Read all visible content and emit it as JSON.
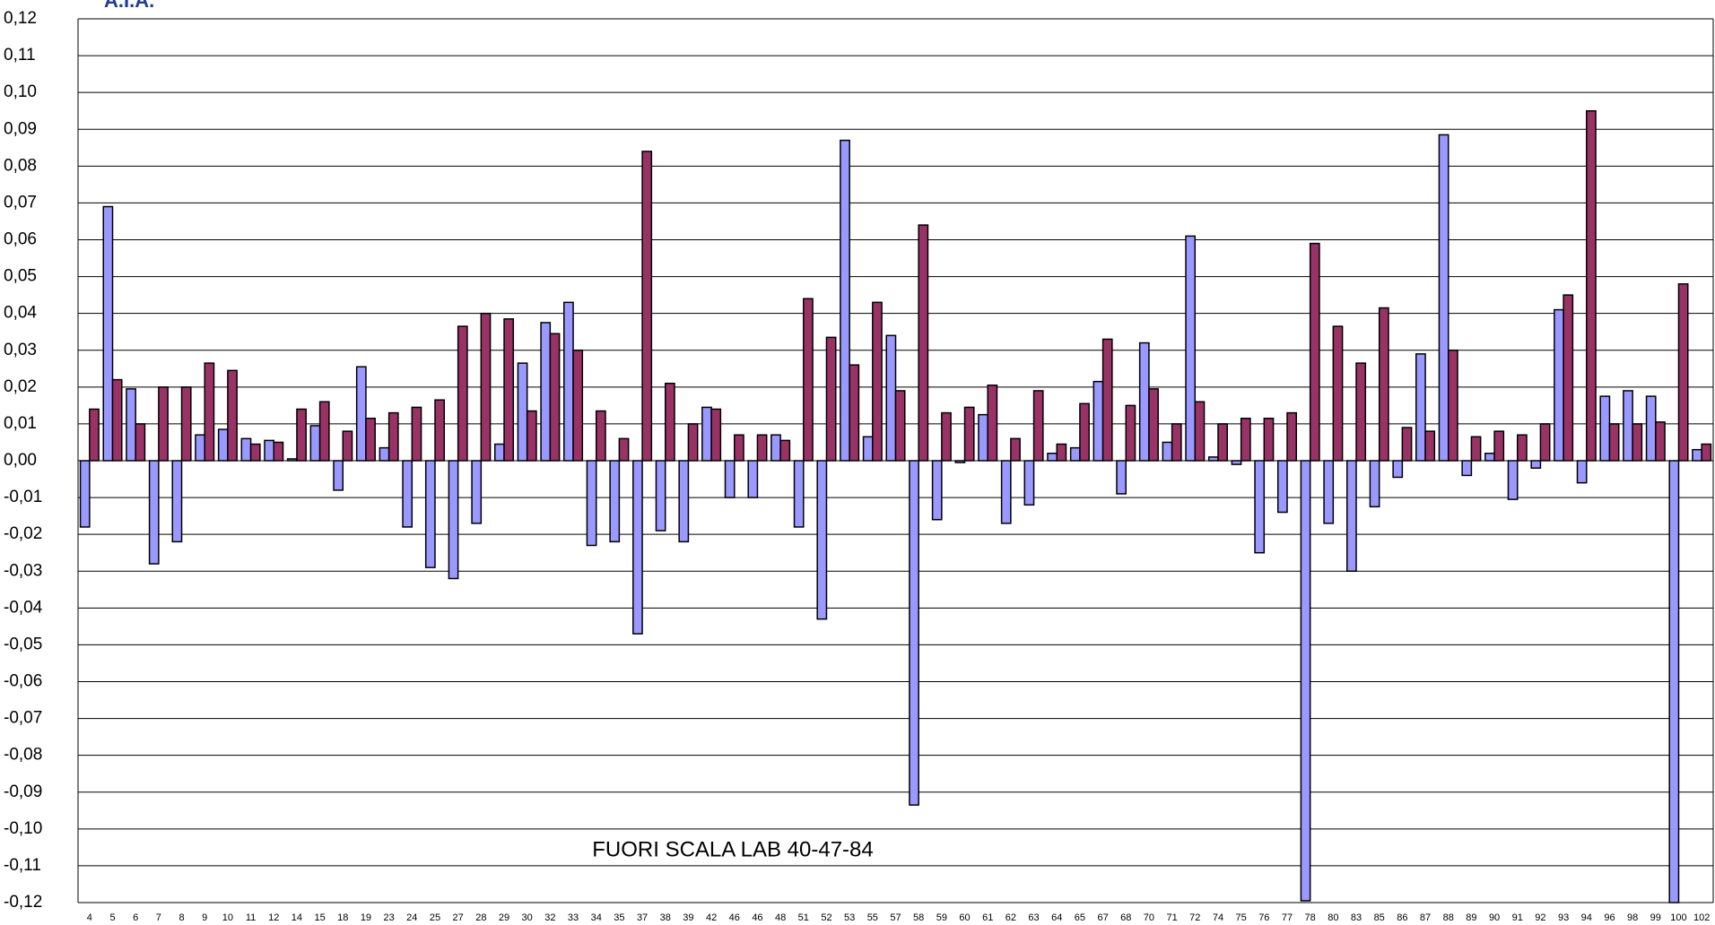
{
  "logo": "A.I.A.",
  "chart_data": {
    "type": "bar",
    "annotation": "FUORI SCALA LAB 40-47-84",
    "categories": [
      "4",
      "5",
      "6",
      "7",
      "8",
      "9",
      "10",
      "11",
      "12",
      "14",
      "15",
      "18",
      "19",
      "23",
      "24",
      "25",
      "27",
      "28",
      "29",
      "30",
      "32",
      "33",
      "34",
      "35",
      "37",
      "38",
      "39",
      "42",
      "46",
      "46",
      "48",
      "51",
      "52",
      "53",
      "55",
      "57",
      "58",
      "59",
      "60",
      "61",
      "62",
      "63",
      "64",
      "65",
      "67",
      "68",
      "70",
      "71",
      "72",
      "74",
      "75",
      "76",
      "77",
      "78",
      "80",
      "83",
      "85",
      "86",
      "87",
      "88",
      "89",
      "90",
      "91",
      "92",
      "93",
      "94",
      "96",
      "98",
      "99",
      "100",
      "102"
    ],
    "series": [
      {
        "color": "#9999ff",
        "values": [
          -0.018,
          0.069,
          0.0195,
          -0.028,
          -0.022,
          0.007,
          0.0085,
          0.006,
          0.0055,
          0.0005,
          0.0095,
          -0.008,
          0.0255,
          0.0035,
          -0.018,
          -0.029,
          -0.032,
          -0.017,
          0.0045,
          0.0265,
          0.0375,
          0.043,
          -0.023,
          -0.022,
          -0.047,
          -0.019,
          -0.022,
          0.0145,
          -0.01,
          -0.01,
          0.007,
          -0.018,
          -0.043,
          0.087,
          0.0065,
          0.034,
          -0.0935,
          -0.016,
          -0.0005,
          0.0125,
          -0.017,
          -0.012,
          0.002,
          0.0035,
          0.0215,
          -0.009,
          0.032,
          0.005,
          0.061,
          0.001,
          -0.001,
          -0.025,
          -0.014,
          -0.1195,
          -0.017,
          -0.03,
          -0.0125,
          -0.0045,
          0.029,
          0.0885,
          -0.004,
          0.002,
          -0.0105,
          -0.002,
          0.041,
          -0.006,
          0.0175,
          0.019,
          0.0175,
          -0.12,
          0.003
        ]
      },
      {
        "color": "#993366",
        "values": [
          0.014,
          0.022,
          0.01,
          0.02,
          0.02,
          0.0265,
          0.0245,
          0.0045,
          0.005,
          0.014,
          0.016,
          0.008,
          0.0115,
          0.013,
          0.0145,
          0.0165,
          0.0365,
          0.04,
          0.0385,
          0.0135,
          0.0345,
          0.03,
          0.0135,
          0.006,
          0.084,
          0.021,
          0.01,
          0.014,
          0.007,
          0.007,
          0.0055,
          0.044,
          0.0335,
          0.026,
          0.043,
          0.019,
          0.064,
          0.013,
          0.0145,
          0.0205,
          0.006,
          0.019,
          0.0045,
          0.0155,
          0.033,
          0.015,
          0.0195,
          0.01,
          0.016,
          0.01,
          0.0115,
          0.0115,
          0.013,
          0.059,
          0.0365,
          0.0265,
          0.0415,
          0.009,
          0.008,
          0.03,
          0.0065,
          0.008,
          0.007,
          0.01,
          0.045,
          0.095,
          0.01,
          0.01,
          0.0105,
          0.048,
          0.0045
        ]
      }
    ],
    "ylim": [
      -0.12,
      0.12
    ],
    "yticks": [
      {
        "value": -0.12,
        "label": "-0,12"
      },
      {
        "value": -0.11,
        "label": "-0,11"
      },
      {
        "value": -0.1,
        "label": "-0,10"
      },
      {
        "value": -0.09,
        "label": "-0,09"
      },
      {
        "value": -0.08,
        "label": "-0,08"
      },
      {
        "value": -0.07,
        "label": "-0,07"
      },
      {
        "value": -0.06,
        "label": "-0,06"
      },
      {
        "value": -0.05,
        "label": "-0,05"
      },
      {
        "value": -0.04,
        "label": "-0,04"
      },
      {
        "value": -0.03,
        "label": "-0,03"
      },
      {
        "value": -0.02,
        "label": "-0,02"
      },
      {
        "value": -0.01,
        "label": "-0,01"
      },
      {
        "value": 0,
        "label": "0,00"
      },
      {
        "value": 0.01,
        "label": "0,01"
      },
      {
        "value": 0.02,
        "label": "0,02"
      },
      {
        "value": 0.03,
        "label": "0,03"
      },
      {
        "value": 0.04,
        "label": "0,04"
      },
      {
        "value": 0.05,
        "label": "0,05"
      },
      {
        "value": 0.06,
        "label": "0,06"
      },
      {
        "value": 0.07,
        "label": "0,07"
      },
      {
        "value": 0.08,
        "label": "0,08"
      },
      {
        "value": 0.09,
        "label": "0,09"
      },
      {
        "value": 0.1,
        "label": "0,10"
      },
      {
        "value": 0.11,
        "label": "0,11"
      },
      {
        "value": 0.12,
        "label": "0,12"
      }
    ],
    "grid": true
  }
}
